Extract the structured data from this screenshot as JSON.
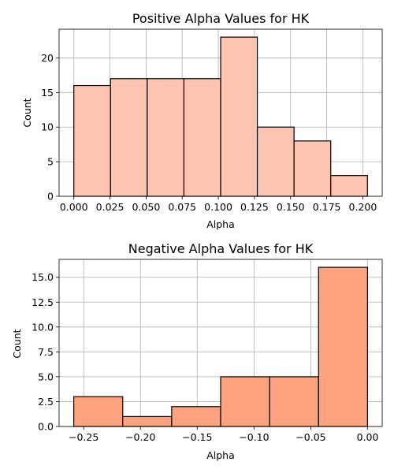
{
  "chart_data": [
    {
      "type": "bar",
      "title": "Positive Alpha Values for HK",
      "xlabel": "Alpha",
      "ylabel": "Count",
      "bin_edges": [
        0.0,
        0.0254,
        0.0508,
        0.0762,
        0.1016,
        0.127,
        0.1524,
        0.1778,
        0.2032
      ],
      "values": [
        16,
        17,
        17,
        17,
        23,
        10,
        8,
        3
      ],
      "xlim": [
        -0.0102,
        0.2134
      ],
      "ylim": [
        0,
        24.15
      ],
      "xticks": [
        0.0,
        0.025,
        0.05,
        0.075,
        0.1,
        0.125,
        0.15,
        0.175,
        0.2
      ],
      "xtick_labels": [
        "0.000",
        "0.025",
        "0.050",
        "0.075",
        "0.100",
        "0.125",
        "0.150",
        "0.175",
        "0.200"
      ],
      "yticks": [
        0,
        5,
        10,
        15,
        20
      ],
      "ytick_labels": [
        "0",
        "5",
        "10",
        "15",
        "20"
      ],
      "bar_color": "#fdc4b0",
      "grid": true
    },
    {
      "type": "bar",
      "title": "Negative Alpha Values for HK",
      "xlabel": "Alpha",
      "ylabel": "Count",
      "bin_edges": [
        -0.2587,
        -0.2156,
        -0.1725,
        -0.1294,
        -0.0863,
        -0.0432,
        -0.0001
      ],
      "values": [
        3,
        1,
        2,
        5,
        5,
        16
      ],
      "xlim": [
        -0.2716,
        0.0128
      ],
      "ylim": [
        0,
        16.8
      ],
      "xticks": [
        -0.25,
        -0.2,
        -0.15,
        -0.1,
        -0.05,
        0.0
      ],
      "xtick_labels": [
        "−0.25",
        "−0.20",
        "−0.15",
        "−0.10",
        "−0.05",
        "0.00"
      ],
      "yticks": [
        0,
        2.5,
        5,
        7.5,
        10,
        12.5,
        15
      ],
      "ytick_labels": [
        "0.0",
        "2.5",
        "5.0",
        "7.5",
        "10.0",
        "12.5",
        "15.0"
      ],
      "bar_color": "#fca27e",
      "grid": true
    }
  ]
}
